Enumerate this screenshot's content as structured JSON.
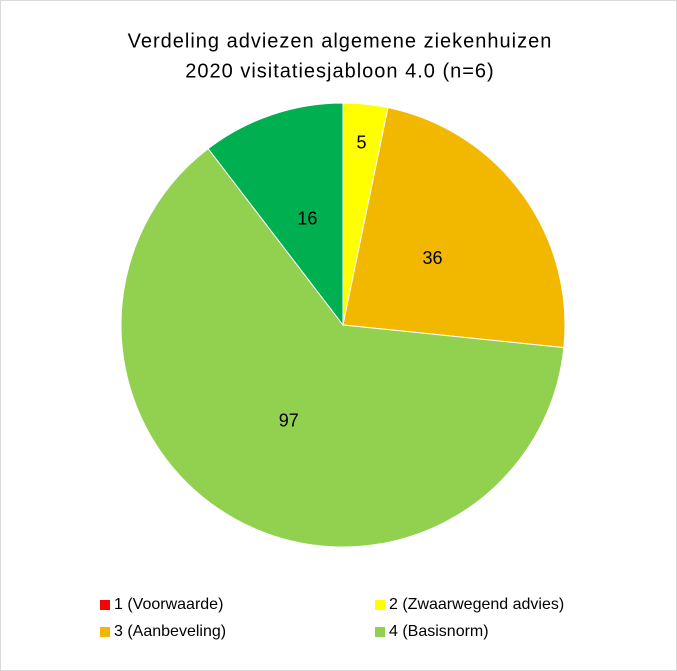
{
  "chart_data": {
    "type": "pie",
    "title": [
      "Verdeling adviezen algemene ziekenhuizen",
      "2020  visitatiesjabloon 4.0 (n=6)"
    ],
    "categories": [
      "1 (Voorwaarde)",
      "2 (Zwaarwegend advies)",
      "3 (Aanbeveling)",
      "4 (Basisnorm)",
      null
    ],
    "values": [
      0,
      5,
      36,
      97,
      16
    ],
    "colors": [
      "#ff0000",
      "#ffff00",
      "#f2b800",
      "#92d050",
      "#00b050"
    ],
    "legend": "bottom"
  }
}
